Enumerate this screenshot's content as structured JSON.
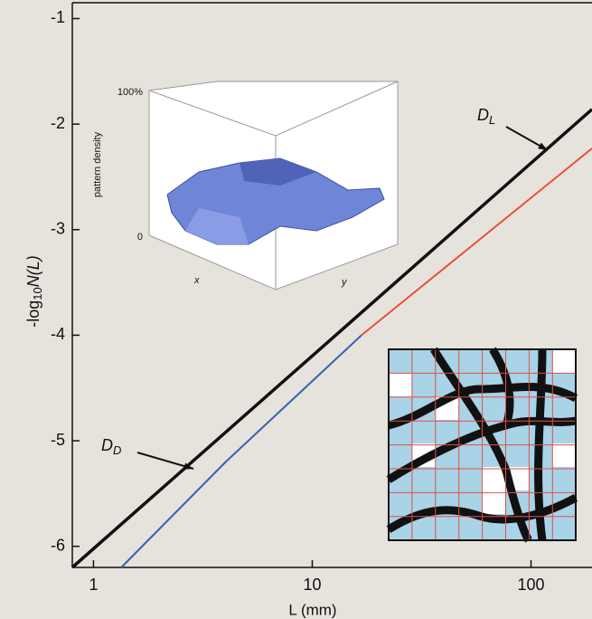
{
  "chart_data": {
    "type": "line",
    "xlabel": "L (mm)",
    "ylabel": {
      "prefix": "-log",
      "sub": "10",
      "main": "N(L)"
    },
    "xscale": "log",
    "xlim": [
      0.8,
      190
    ],
    "xticks": [
      1,
      10,
      100
    ],
    "ylim": [
      -6.2,
      -0.85
    ],
    "yticks": [
      -1,
      -2,
      -3,
      -4,
      -5,
      -6
    ],
    "series": [
      {
        "color": "#111111",
        "x": [
          0.8,
          190
        ],
        "values": [
          -6.2,
          -1.86
        ]
      },
      {
        "color": "#e8503a",
        "x": [
          16.8,
          190
        ],
        "values": [
          -4.0,
          -2.23
        ]
      },
      {
        "color": "#3a5fb0",
        "x": [
          1.34,
          4.02,
          16.8
        ],
        "values": [
          -6.2,
          -5.2,
          -4.0
        ]
      }
    ],
    "annotations": [
      {
        "text": "D",
        "sub": "L"
      },
      {
        "text": "D",
        "sub": "D"
      }
    ],
    "inset_labels": {
      "top": "100%",
      "axis": "pattern density",
      "bottom": "0",
      "x": "x",
      "y": "y"
    }
  }
}
